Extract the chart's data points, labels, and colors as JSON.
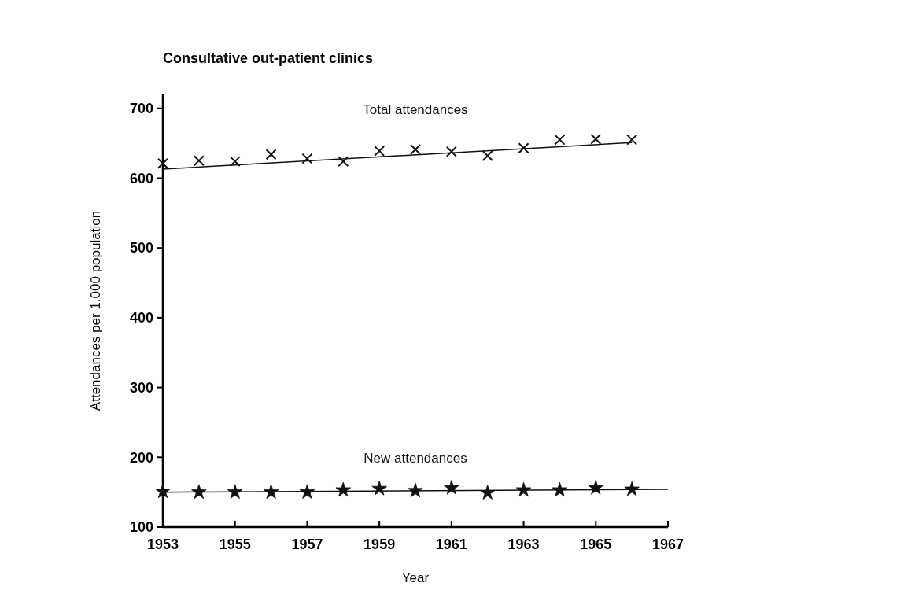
{
  "chart_data": {
    "type": "scatter",
    "title": "Consultative out-patient clinics",
    "xlabel": "Year",
    "ylabel": "Attendances per 1,000 population",
    "x": [
      1953,
      1954,
      1955,
      1956,
      1957,
      1958,
      1959,
      1960,
      1961,
      1962,
      1963,
      1964,
      1965,
      1966
    ],
    "series": [
      {
        "name": "Total attendances",
        "color": "#111111",
        "marker": "cross",
        "values": [
          621,
          625,
          624,
          634,
          628,
          624,
          639,
          641,
          638,
          632,
          643,
          655,
          656,
          655
        ]
      },
      {
        "name": "New attendances",
        "color": "#111111",
        "marker": "star",
        "values": [
          151,
          150,
          150,
          150,
          150,
          153,
          155,
          152,
          156,
          149,
          153,
          153,
          156,
          154
        ]
      },
      {
        "type": "line",
        "color": "#111111",
        "marker": "none",
        "x": [
          1953,
          1966
        ],
        "values": [
          613,
          651
        ]
      },
      {
        "type": "line",
        "color": "#111111",
        "marker": "none",
        "x": [
          1953,
          1967
        ],
        "values": [
          150,
          154
        ]
      }
    ],
    "xlim": [
      1953,
      1967
    ],
    "xticks": [
      1953,
      1955,
      1957,
      1959,
      1961,
      1963,
      1965,
      1967
    ],
    "ylim": [
      100,
      720
    ],
    "yticks": [
      100,
      200,
      300,
      400,
      500,
      600,
      700
    ],
    "grid": false,
    "legend": false
  }
}
